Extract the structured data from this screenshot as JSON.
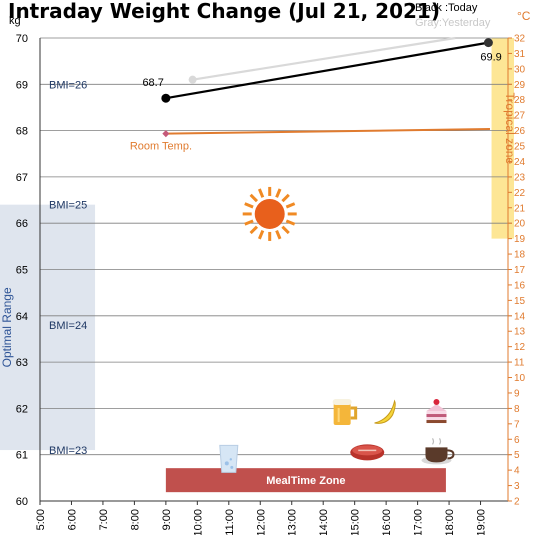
{
  "chart_data": {
    "type": "line",
    "title": "Intraday Weight Change (Jul 21, 2021)",
    "y_left_unit": "kg",
    "y_right_unit": "°C",
    "ylim_left": [
      60,
      70
    ],
    "ylim_right": [
      2,
      32
    ],
    "x_ticks": [
      "5:00",
      "6:00",
      "7:00",
      "8:00",
      "9:00",
      "10:00",
      "11:00",
      "12:00",
      "13:00",
      "14:00",
      "15:00",
      "16:00",
      "17:00",
      "18:00",
      "19:00"
    ],
    "legend": {
      "today": "Black :Today",
      "yesterday": "Gray:Yesterday"
    },
    "series": [
      {
        "name": "Today",
        "color": "#000000",
        "axis": "left",
        "x": [
          9.0,
          19.25
        ],
        "y": [
          68.7,
          69.9
        ]
      },
      {
        "name": "Yesterday",
        "color": "#d9d9d9",
        "axis": "left",
        "x": [
          9.85,
          18.2
        ],
        "y": [
          69.1,
          70.0
        ]
      },
      {
        "name": "Room Temp.",
        "color": "#e07b2f",
        "axis": "right",
        "x": [
          9.0,
          19.3
        ],
        "y": [
          25.8,
          26.1
        ]
      }
    ],
    "data_labels": {
      "start": "68.7",
      "end": "69.9"
    },
    "bmi_lines": [
      {
        "label": "BMI=26",
        "kg": 69.0
      },
      {
        "label": "BMI=25",
        "kg": 66.4
      },
      {
        "label": "BMI=24",
        "kg": 63.8
      },
      {
        "label": "BMI=23",
        "kg": 61.1
      }
    ],
    "optimal_range": {
      "label": "Optimal Range",
      "kg_from": 61.1,
      "kg_to": 66.4,
      "x_from": 5.0,
      "x_to": 6.75
    },
    "tropical_zone": {
      "label": "Tropical zone",
      "temp_from": 19,
      "temp_to": 32,
      "x_from": 19.35,
      "x_to": 20.0
    },
    "room_temp_label": "Room Temp.",
    "meal_time_zone": {
      "label": "MealTime Zone",
      "x_from": 9.0,
      "x_to": 17.9
    },
    "icons": [
      {
        "name": "sun-icon",
        "x": 12.3,
        "kg": 66.2
      },
      {
        "name": "beer-icon",
        "x": 14.65,
        "kg": 61.9
      },
      {
        "name": "banana-icon",
        "x": 15.95,
        "kg": 61.9
      },
      {
        "name": "cake-icon",
        "x": 17.6,
        "kg": 61.9
      },
      {
        "name": "water-glass-icon",
        "x": 11.0,
        "kg": 60.9
      },
      {
        "name": "steak-icon",
        "x": 15.4,
        "kg": 61.05
      },
      {
        "name": "coffee-icon",
        "x": 17.6,
        "kg": 61.05
      }
    ]
  }
}
